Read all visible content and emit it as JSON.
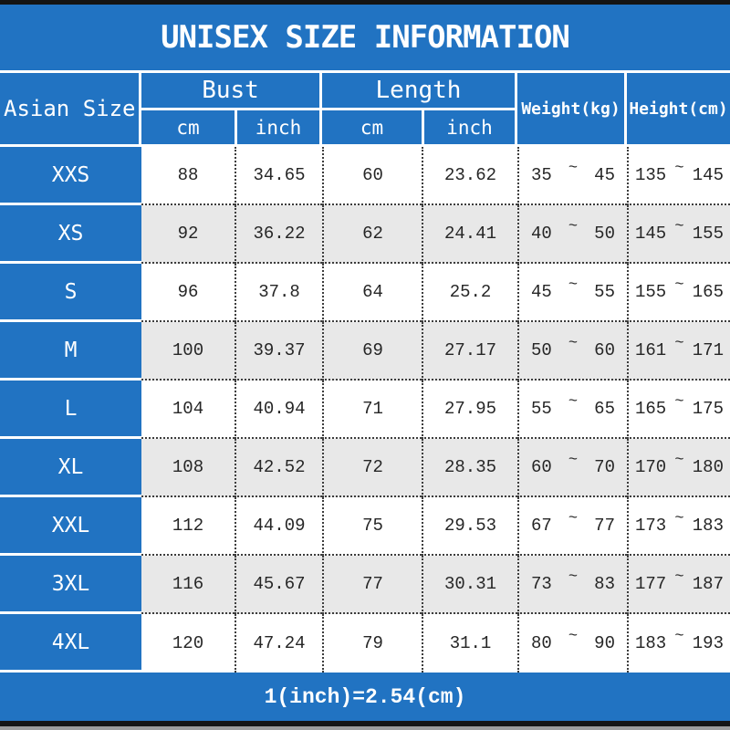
{
  "title": "UNISEX SIZE INFORMATION",
  "footer_note": "1(inch)=2.54(cm)",
  "tilde": "~",
  "colors": {
    "accent_blue": "#2173c2",
    "row_alt_gray": "#e8e8e8",
    "bar_black": "#141414",
    "bar_gray": "#9c9c9c",
    "text_on_blue": "#ffffff",
    "data_text": "#262626"
  },
  "header": {
    "size_col": "Asian Size",
    "groups": [
      {
        "label": "Bust",
        "subs": [
          "cm",
          "inch"
        ]
      },
      {
        "label": "Length",
        "subs": [
          "cm",
          "inch"
        ]
      }
    ],
    "singles": [
      "Weight(kg)",
      "Height(cm)"
    ]
  },
  "rows": [
    {
      "size": "XXS",
      "bust_cm": "88",
      "bust_inch": "34.65",
      "length_cm": "60",
      "length_inch": "23.62",
      "weight_min": "35",
      "weight_max": "45",
      "height_min": "135",
      "height_max": "145"
    },
    {
      "size": "XS",
      "bust_cm": "92",
      "bust_inch": "36.22",
      "length_cm": "62",
      "length_inch": "24.41",
      "weight_min": "40",
      "weight_max": "50",
      "height_min": "145",
      "height_max": "155"
    },
    {
      "size": "S",
      "bust_cm": "96",
      "bust_inch": "37.8",
      "length_cm": "64",
      "length_inch": "25.2",
      "weight_min": "45",
      "weight_max": "55",
      "height_min": "155",
      "height_max": "165"
    },
    {
      "size": "M",
      "bust_cm": "100",
      "bust_inch": "39.37",
      "length_cm": "69",
      "length_inch": "27.17",
      "weight_min": "50",
      "weight_max": "60",
      "height_min": "161",
      "height_max": "171"
    },
    {
      "size": "L",
      "bust_cm": "104",
      "bust_inch": "40.94",
      "length_cm": "71",
      "length_inch": "27.95",
      "weight_min": "55",
      "weight_max": "65",
      "height_min": "165",
      "height_max": "175"
    },
    {
      "size": "XL",
      "bust_cm": "108",
      "bust_inch": "42.52",
      "length_cm": "72",
      "length_inch": "28.35",
      "weight_min": "60",
      "weight_max": "70",
      "height_min": "170",
      "height_max": "180"
    },
    {
      "size": "XXL",
      "bust_cm": "112",
      "bust_inch": "44.09",
      "length_cm": "75",
      "length_inch": "29.53",
      "weight_min": "67",
      "weight_max": "77",
      "height_min": "173",
      "height_max": "183"
    },
    {
      "size": "3XL",
      "bust_cm": "116",
      "bust_inch": "45.67",
      "length_cm": "77",
      "length_inch": "30.31",
      "weight_min": "73",
      "weight_max": "83",
      "height_min": "177",
      "height_max": "187"
    },
    {
      "size": "4XL",
      "bust_cm": "120",
      "bust_inch": "47.24",
      "length_cm": "79",
      "length_inch": "31.1",
      "weight_min": "80",
      "weight_max": "90",
      "height_min": "183",
      "height_max": "193"
    }
  ]
}
